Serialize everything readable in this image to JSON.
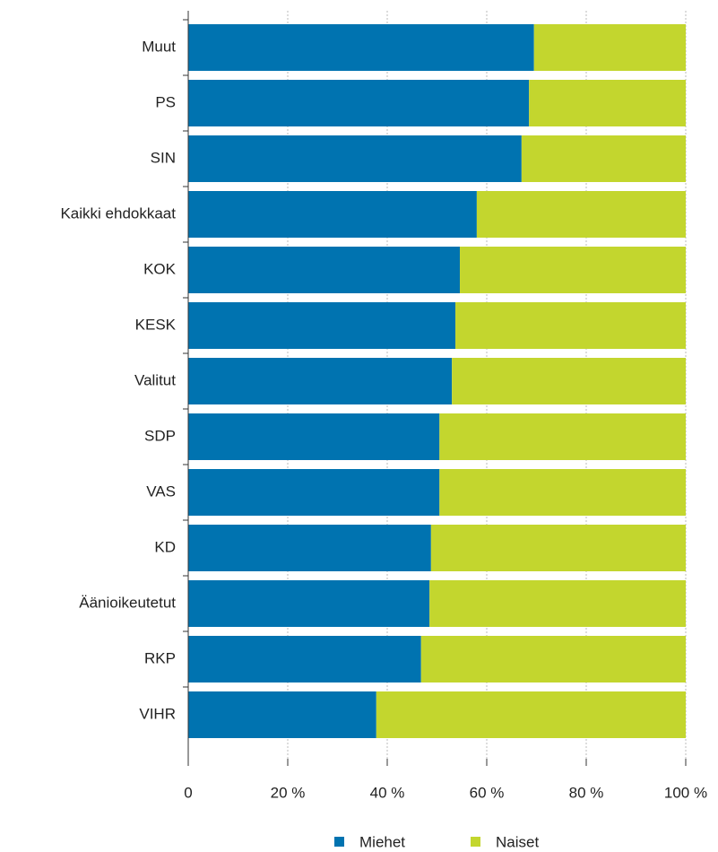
{
  "chart_data": {
    "type": "bar",
    "orientation": "horizontal",
    "stacked": true,
    "categories": [
      "Muut",
      "PS",
      "SIN",
      "Kaikki ehdokkaat",
      "KOK",
      "KESK",
      "Valitut",
      "SDP",
      "VAS",
      "KD",
      "Äänioikeutetut",
      "RKP",
      "VIHR"
    ],
    "series": [
      {
        "name": "Miehet",
        "color": "#0073b0",
        "values": [
          69.5,
          68.5,
          67.0,
          58.0,
          54.6,
          53.7,
          53.0,
          50.5,
          50.5,
          48.8,
          48.5,
          46.8,
          37.8
        ]
      },
      {
        "name": "Naiset",
        "color": "#c3d62e",
        "values": [
          30.5,
          31.5,
          33.0,
          42.0,
          45.4,
          46.3,
          47.0,
          49.5,
          49.5,
          51.2,
          51.5,
          53.2,
          62.2
        ]
      }
    ],
    "xlim": [
      0,
      100
    ],
    "xticks": [
      0,
      {
        "value": 20,
        "label": "20 %"
      },
      {
        "value": 40,
        "label": "40 %"
      },
      {
        "value": 60,
        "label": "60 %"
      },
      {
        "value": 80,
        "label": "80 %"
      },
      {
        "value": 100,
        "label": "100 %"
      }
    ],
    "grid": true,
    "legend": "bottom"
  }
}
